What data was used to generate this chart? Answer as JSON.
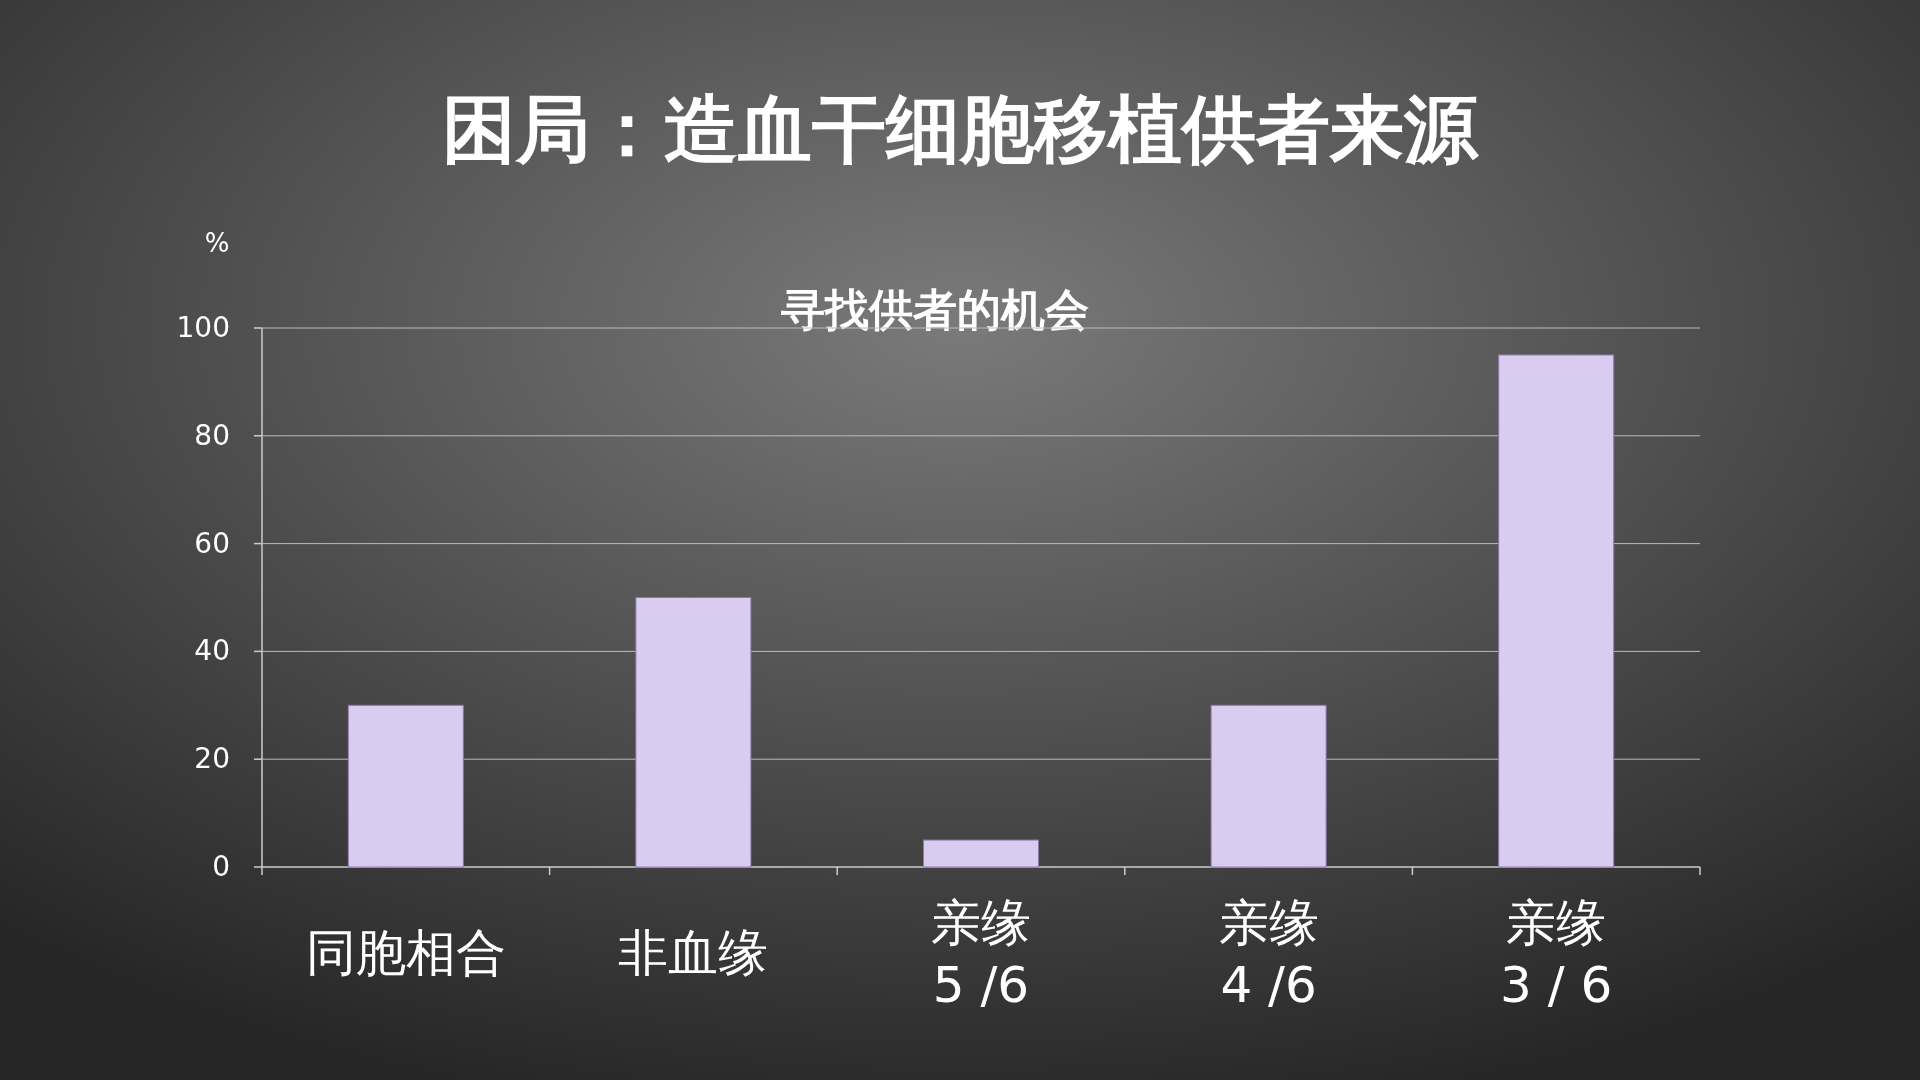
{
  "chart_data": {
    "type": "bar",
    "title": "困局：造血干细胞移植供者来源",
    "subtitle": "寻找供者的机会",
    "ylabel": "%",
    "categories": [
      "同胞相合",
      "非血缘",
      "亲缘\n5 /6",
      "亲缘\n4 /6",
      "亲缘\n3 / 6"
    ],
    "values": [
      30,
      50,
      5,
      30,
      95
    ],
    "color": "#d9ccf0",
    "ylim": [
      0,
      100
    ],
    "yticks": [
      0,
      20,
      40,
      60,
      80,
      100
    ],
    "grid": "y"
  }
}
